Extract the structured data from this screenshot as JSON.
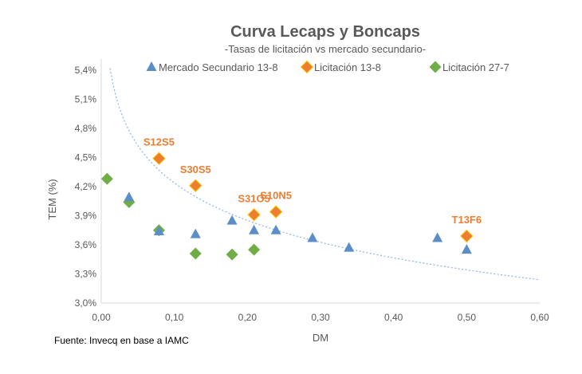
{
  "chart_data": {
    "type": "scatter",
    "title": "Curva Lecaps y Boncaps",
    "subtitle": "-Tasas de licitación vs mercado secundario-",
    "xlabel": "DM",
    "ylabel": "TEM (%)",
    "xlim": [
      0,
      0.6
    ],
    "ylim": [
      3.0,
      5.4
    ],
    "xticks": [
      "0,00",
      "0,10",
      "0,20",
      "0,30",
      "0,40",
      "0,50",
      "0,60"
    ],
    "yticks": [
      "3,0%",
      "3,3%",
      "3,6%",
      "3,9%",
      "4,2%",
      "4,5%",
      "4,8%",
      "5,1%",
      "5,4%"
    ],
    "grid": false,
    "legend_position": "top",
    "series": [
      {
        "name": "Mercado Secundario 13-8",
        "marker": "triangle",
        "color": "#5B8EC7",
        "x": [
          0.038,
          0.079,
          0.129,
          0.179,
          0.209,
          0.239,
          0.289,
          0.339,
          0.46,
          0.5
        ],
        "y": [
          4.09,
          3.74,
          3.71,
          3.85,
          3.75,
          3.75,
          3.67,
          3.57,
          3.67,
          3.55
        ]
      },
      {
        "name": "Licitación 13-8",
        "marker": "diamond",
        "color": "#ED7D31",
        "x": [
          0.079,
          0.129,
          0.209,
          0.239,
          0.5
        ],
        "y": [
          4.49,
          4.21,
          3.91,
          3.94,
          3.69
        ],
        "labels": [
          "S12S5",
          "S30S5",
          "S31O5",
          "S10N5",
          "T13F6"
        ]
      },
      {
        "name": "Licitación 27-7",
        "marker": "diamond",
        "color": "#70AD47",
        "x": [
          0.008,
          0.038,
          0.079,
          0.129,
          0.179,
          0.209
        ],
        "y": [
          4.28,
          4.04,
          3.75,
          3.51,
          3.5,
          3.55
        ]
      }
    ],
    "trendline": {
      "type": "logarithmic",
      "style": "dotted",
      "color": "#8DB4E2"
    }
  },
  "source": "Fuente: Invecq en base a IAMC"
}
